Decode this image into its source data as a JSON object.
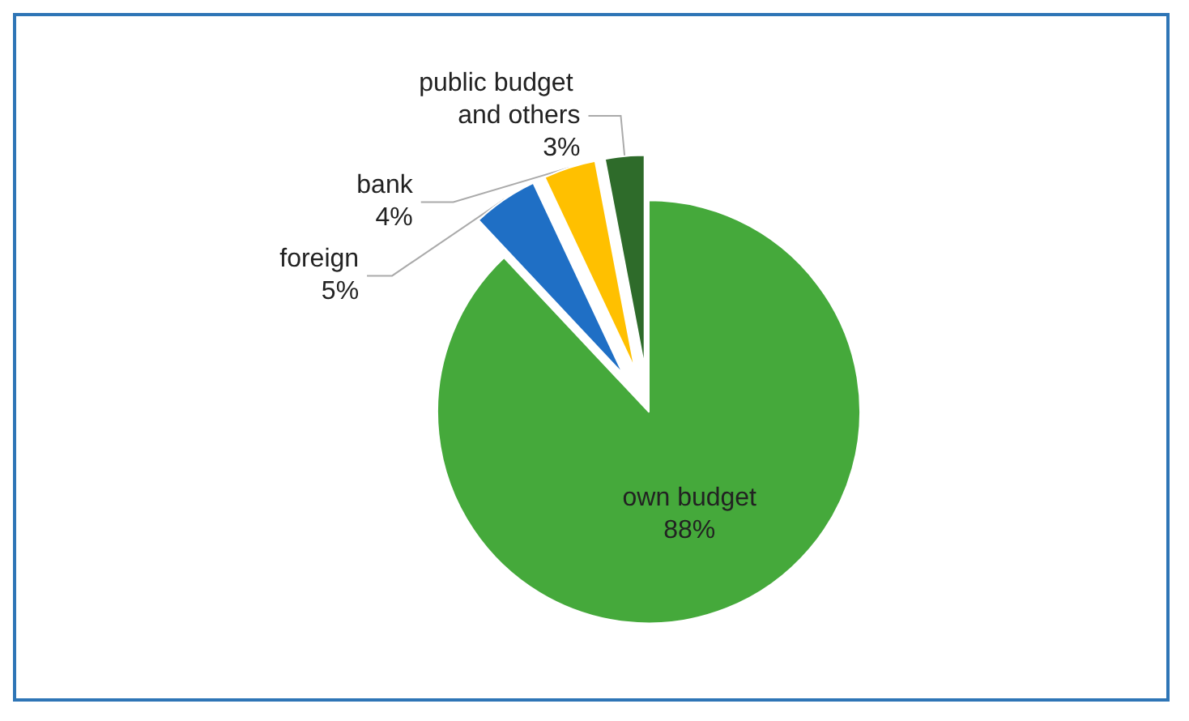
{
  "chart_data": {
    "type": "pie",
    "categories": [
      "own budget",
      "foreign",
      "bank",
      "public budget and others"
    ],
    "values": [
      88,
      5,
      4,
      3
    ],
    "value_labels": [
      "88%",
      "5%",
      "4%",
      "3%"
    ],
    "colors": [
      "#45a93b",
      "#1f6fc5",
      "#ffc000",
      "#2e6b2a"
    ],
    "legend": false
  }
}
